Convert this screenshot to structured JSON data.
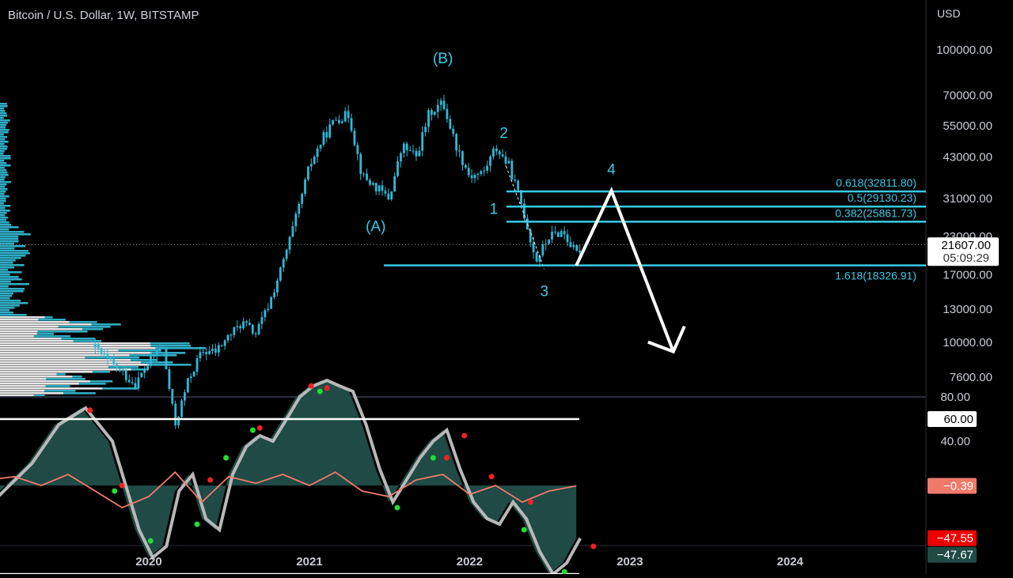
{
  "header": {
    "title": "Bitcoin / U.S. Dollar, 1W, BITSTAMP",
    "currency": "USD"
  },
  "colors": {
    "background": "#000000",
    "accent_cyan": "#38cbe8",
    "candle": "#2fb8d8",
    "oscillator_fill": "#1f4a45",
    "signal_line": "#f07a6a",
    "bull_dot": "#22dd33",
    "bear_dot": "#ee2222"
  },
  "chart_data": [
    {
      "type": "line",
      "scale": "log",
      "title": "Bitcoin / U.S. Dollar, 1W, BITSTAMP",
      "ylabel": "USD",
      "y_ticks": [
        "100000.00",
        "70000.00",
        "55000.00",
        "43000.00",
        "31000.00",
        "23000.00",
        "17000.00",
        "13000.00",
        "10000.00",
        "7600.00"
      ],
      "x_ticks": [
        "2020",
        "2021",
        "2022",
        "2023",
        "2024"
      ],
      "last_price": {
        "price": "21607.00",
        "countdown": "05:09:29"
      },
      "price_path": [
        [
          "2019-09",
          9600
        ],
        [
          "2019-10",
          8600
        ],
        [
          "2019-11",
          7900
        ],
        [
          "2019-12",
          7200
        ],
        [
          "2020-01",
          8500
        ],
        [
          "2020-02",
          9800
        ],
        [
          "2020-03",
          5200
        ],
        [
          "2020-04",
          7500
        ],
        [
          "2020-05",
          9300
        ],
        [
          "2020-06",
          9300
        ],
        [
          "2020-07",
          10500
        ],
        [
          "2020-08",
          11700
        ],
        [
          "2020-09",
          10700
        ],
        [
          "2020-10",
          13500
        ],
        [
          "2020-11",
          18500
        ],
        [
          "2020-12",
          26500
        ],
        [
          "2021-01",
          40000
        ],
        [
          "2021-02",
          50000
        ],
        [
          "2021-03",
          58000
        ],
        [
          "2021-04",
          60000
        ],
        [
          "2021-05",
          37000
        ],
        [
          "2021-06",
          34000
        ],
        [
          "2021-07",
          31000
        ],
        [
          "2021-08",
          47000
        ],
        [
          "2021-09",
          43000
        ],
        [
          "2021-10",
          61000
        ],
        [
          "2021-11",
          66000
        ],
        [
          "2021-12",
          47000
        ],
        [
          "2022-01",
          37000
        ],
        [
          "2022-02",
          38000
        ],
        [
          "2022-03",
          46500
        ],
        [
          "2022-04",
          40000
        ],
        [
          "2022-05",
          29000
        ],
        [
          "2022-06",
          19000
        ],
        [
          "2022-07",
          23000
        ],
        [
          "2022-08",
          24000
        ],
        [
          "2022-09",
          20000
        ],
        [
          "2022-09-15",
          21607
        ]
      ],
      "fib_levels": [
        {
          "label": "0.618(32811.80)",
          "ratio": 0.618,
          "price": 32811.8
        },
        {
          "label": "0.5(29130.23)",
          "ratio": 0.5,
          "price": 29130.23
        },
        {
          "label": "0.382(25861.73)",
          "ratio": 0.382,
          "price": 25861.73
        },
        {
          "label": "1.618(18326.91)",
          "ratio": 1.618,
          "price": 18326.91
        }
      ],
      "wave_labels": [
        {
          "text": "(B)",
          "date": "2021-11",
          "price": 90000
        },
        {
          "text": "(A)",
          "date": "2021-06",
          "price": 24000
        },
        {
          "text": "2",
          "date": "2022-03-20",
          "price": 50000
        },
        {
          "text": "1",
          "date": "2022-02-25",
          "price": 27500
        },
        {
          "text": "3",
          "date": "2022-06-20",
          "price": 14400
        },
        {
          "text": "4",
          "date": "2022-11-20",
          "price": 37500
        }
      ],
      "projection_path": [
        [
          "2022-09",
          18300
        ],
        [
          "2022-11-20",
          33000
        ],
        [
          "2023-04-10",
          9300
        ]
      ]
    },
    {
      "type": "line",
      "title": "",
      "y_ticks": [
        "80.00",
        "40.00"
      ],
      "upper_band": 60,
      "lower_band": -80,
      "badges": [
        {
          "label": "60.00",
          "style": "white"
        },
        {
          "label": "−0.39",
          "style": "salmon"
        },
        {
          "label": "−47.55",
          "style": "red"
        },
        {
          "label": "−47.67",
          "style": "teal"
        }
      ],
      "oscillator": [
        [
          "2019-01",
          -15
        ],
        [
          "2019-04",
          20
        ],
        [
          "2019-06",
          55
        ],
        [
          "2019-08",
          70
        ],
        [
          "2019-10",
          40
        ],
        [
          "2019-12",
          -40
        ],
        [
          "2020-01",
          -65
        ],
        [
          "2020-02",
          -55
        ],
        [
          "2020-03",
          -5
        ],
        [
          "2020-04",
          10
        ],
        [
          "2020-05",
          -30
        ],
        [
          "2020-06",
          -40
        ],
        [
          "2020-07",
          10
        ],
        [
          "2020-08",
          35
        ],
        [
          "2020-09",
          45
        ],
        [
          "2020-10",
          40
        ],
        [
          "2020-11",
          60
        ],
        [
          "2020-12",
          80
        ],
        [
          "2021-01",
          90
        ],
        [
          "2021-02",
          95
        ],
        [
          "2021-03",
          90
        ],
        [
          "2021-04",
          85
        ],
        [
          "2021-05",
          55
        ],
        [
          "2021-06",
          15
        ],
        [
          "2021-07",
          -15
        ],
        [
          "2021-08",
          5
        ],
        [
          "2021-09",
          25
        ],
        [
          "2021-10",
          40
        ],
        [
          "2021-11",
          50
        ],
        [
          "2021-12",
          15
        ],
        [
          "2022-01",
          -15
        ],
        [
          "2022-02",
          -30
        ],
        [
          "2022-03",
          -35
        ],
        [
          "2022-04",
          -15
        ],
        [
          "2022-05",
          -30
        ],
        [
          "2022-06",
          -60
        ],
        [
          "2022-07",
          -80
        ],
        [
          "2022-08",
          -70
        ],
        [
          "2022-09",
          -47.67
        ]
      ],
      "signal": [
        [
          "2019-01",
          5
        ],
        [
          "2019-03",
          8
        ],
        [
          "2019-05",
          0
        ],
        [
          "2019-07",
          10
        ],
        [
          "2019-09",
          -5
        ],
        [
          "2019-11",
          -20
        ],
        [
          "2020-01",
          -10
        ],
        [
          "2020-03",
          12
        ],
        [
          "2020-05",
          -15
        ],
        [
          "2020-07",
          8
        ],
        [
          "2020-09",
          2
        ],
        [
          "2020-11",
          10
        ],
        [
          "2021-01",
          0
        ],
        [
          "2021-03",
          12
        ],
        [
          "2021-05",
          -5
        ],
        [
          "2021-07",
          -10
        ],
        [
          "2021-09",
          5
        ],
        [
          "2021-11",
          10
        ],
        [
          "2022-01",
          -8
        ],
        [
          "2022-03",
          0
        ],
        [
          "2022-05",
          -15
        ],
        [
          "2022-07",
          -5
        ],
        [
          "2022-09",
          -0.39
        ]
      ],
      "bull_dots": [
        [
          "2019-10-15",
          -5
        ],
        [
          "2020-01-05",
          -50
        ],
        [
          "2020-04-20",
          -35
        ],
        [
          "2020-06-25",
          25
        ],
        [
          "2020-08-25",
          50
        ],
        [
          "2021-01-25",
          85
        ],
        [
          "2021-07-20",
          -20
        ],
        [
          "2021-10-10",
          25
        ],
        [
          "2022-05-05",
          -40
        ],
        [
          "2022-08-05",
          -78
        ]
      ],
      "bear_dots": [
        [
          "2019-08-20",
          68
        ],
        [
          "2019-11-01",
          0
        ],
        [
          "2020-05-20",
          5
        ],
        [
          "2020-09-10",
          52
        ],
        [
          "2021-01-05",
          90
        ],
        [
          "2021-02-10",
          88
        ],
        [
          "2021-11-10",
          25
        ],
        [
          "2021-12-20",
          45
        ],
        [
          "2022-02-20",
          8
        ],
        [
          "2022-05-20",
          -15
        ],
        [
          "2022-10-10",
          -55
        ]
      ]
    }
  ]
}
